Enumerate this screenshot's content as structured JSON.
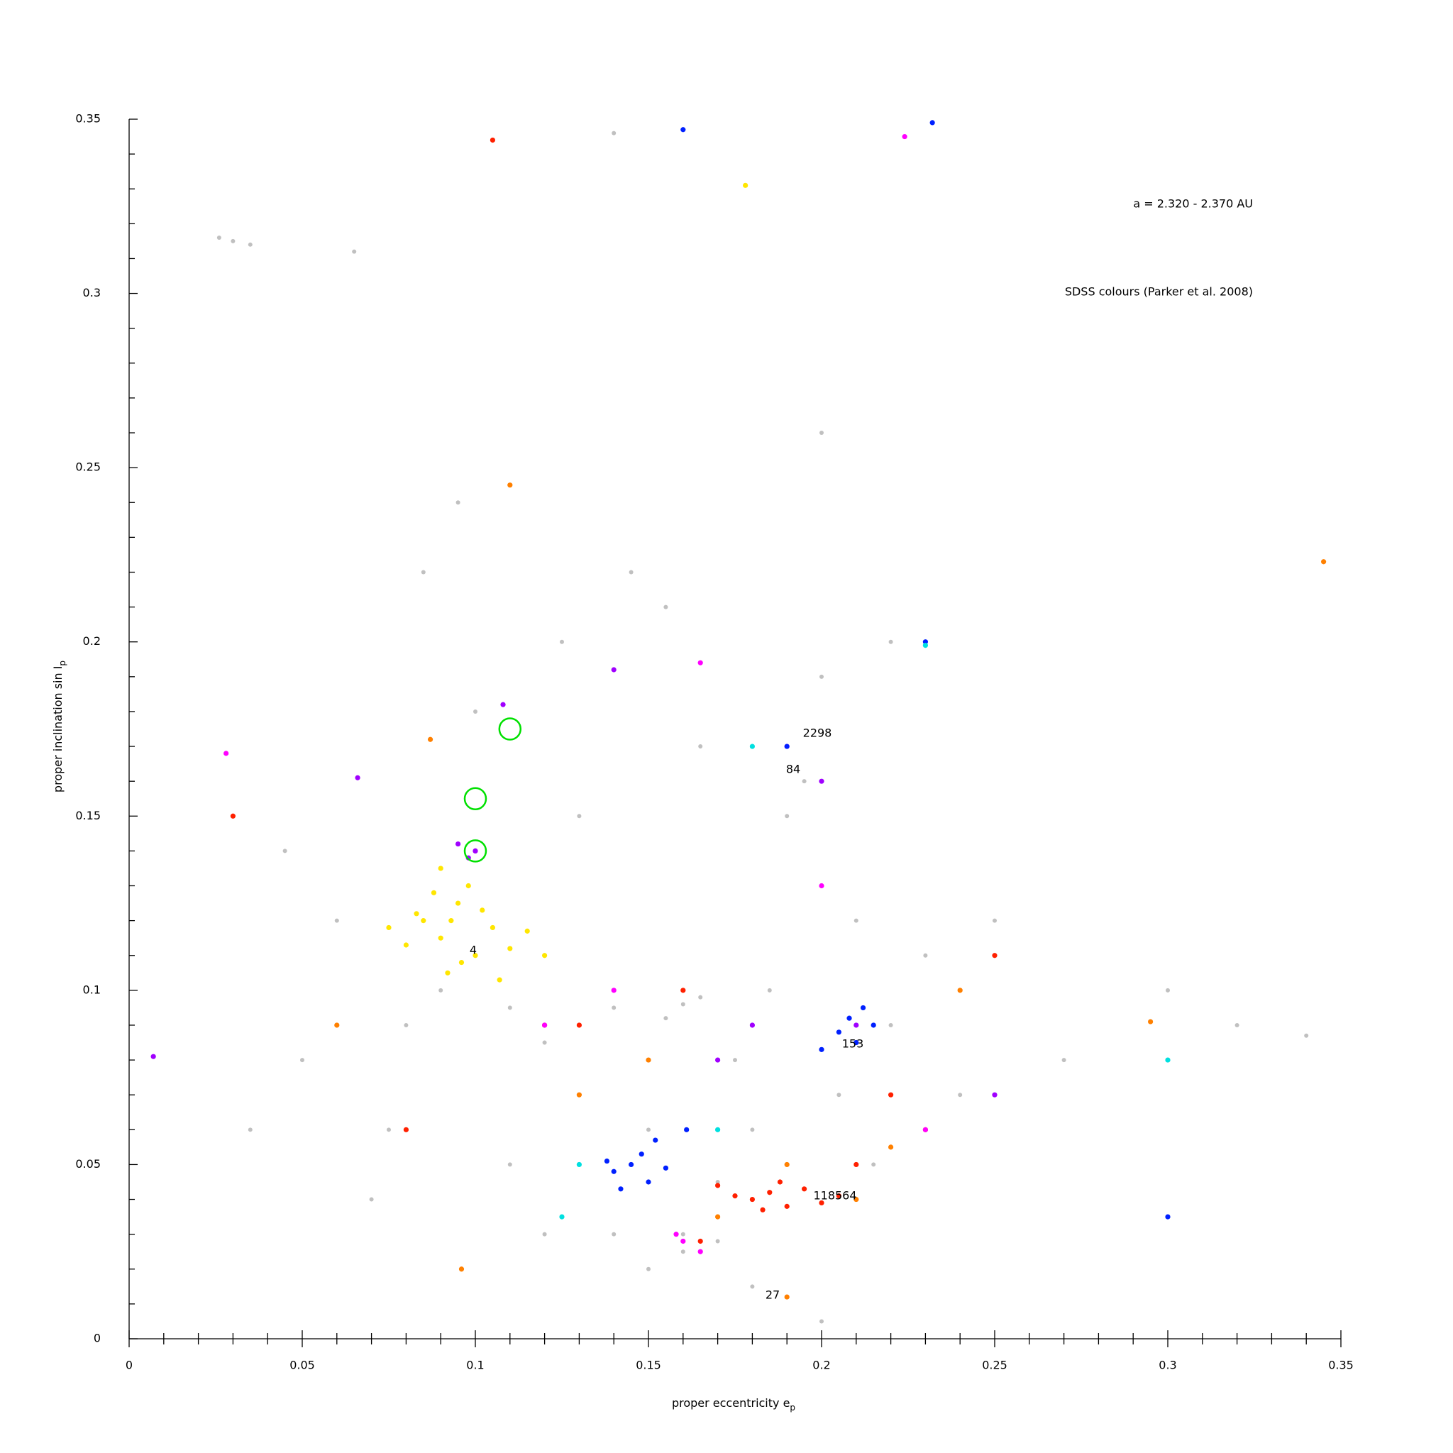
{
  "chart_data": {
    "type": "scatter",
    "xlabel": {
      "text": "proper eccentricity e",
      "sub": "p"
    },
    "ylabel": {
      "text": "proper inclination sin I",
      "sub": "p"
    },
    "annotations": [
      "a = 2.320 - 2.370 AU",
      "SDSS colours (Parker et al. 2008)"
    ],
    "family_labels": [
      "4",
      "2298",
      "84",
      "153",
      "118564",
      "27"
    ],
    "xlim": [
      0,
      0.35
    ],
    "ylim": [
      0,
      0.35
    ],
    "xticks": [
      0,
      0.05,
      0.1,
      0.15,
      0.2,
      0.25,
      0.3,
      0.35
    ],
    "yticks": [
      0,
      0.05,
      0.1,
      0.15,
      0.2,
      0.25,
      0.3,
      0.35
    ],
    "xminorticks": [
      0.01,
      0.02,
      0.03,
      0.04,
      0.06,
      0.07,
      0.08,
      0.09,
      0.11,
      0.12,
      0.13,
      0.14,
      0.16,
      0.17,
      0.18,
      0.19,
      0.21,
      0.22,
      0.23,
      0.24,
      0.26,
      0.27,
      0.28,
      0.29,
      0.31,
      0.32,
      0.33,
      0.34
    ],
    "yminorticks": [
      0.01,
      0.02,
      0.03,
      0.04,
      0.06,
      0.07,
      0.08,
      0.09,
      0.11,
      0.12,
      0.13,
      0.14,
      0.16,
      0.17,
      0.18,
      0.19,
      0.21,
      0.22,
      0.23,
      0.24,
      0.26,
      0.27,
      0.28,
      0.29,
      0.31,
      0.32,
      0.33,
      0.34
    ],
    "series": [
      {
        "color": "#c0c0c0",
        "x": [
          0.05,
          0.06,
          0.08,
          0.09,
          0.11,
          0.12,
          0.13,
          0.14,
          0.15,
          0.16,
          0.17,
          0.18,
          0.19,
          0.2,
          0.21,
          0.22,
          0.23,
          0.24,
          0.25,
          0.27,
          0.3,
          0.035,
          0.045,
          0.07,
          0.1,
          0.125,
          0.145,
          0.155,
          0.165,
          0.175,
          0.185,
          0.195,
          0.205,
          0.215,
          0.16,
          0.17,
          0.15,
          0.14,
          0.18,
          0.19,
          0.2,
          0.12,
          0.11,
          0.085,
          0.095,
          0.026,
          0.03,
          0.035,
          0.065,
          0.14,
          0.2,
          0.22,
          0.32,
          0.34,
          0.16,
          0.165,
          0.155,
          0.13,
          0.1,
          0.075
        ],
        "values": [
          0.08,
          0.12,
          0.09,
          0.1,
          0.095,
          0.085,
          0.07,
          0.095,
          0.06,
          0.03,
          0.045,
          0.06,
          0.15,
          0.19,
          0.12,
          0.09,
          0.11,
          0.07,
          0.12,
          0.08,
          0.1,
          0.06,
          0.14,
          0.04,
          0.18,
          0.2,
          0.22,
          0.21,
          0.17,
          0.08,
          0.1,
          0.16,
          0.07,
          0.05,
          0.025,
          0.028,
          0.02,
          0.03,
          0.015,
          0.012,
          0.005,
          0.03,
          0.05,
          0.22,
          0.24,
          0.316,
          0.315,
          0.314,
          0.312,
          0.346,
          0.26,
          0.2,
          0.09,
          0.087,
          0.096,
          0.098,
          0.092,
          0.15,
          0.11,
          0.06
        ]
      },
      {
        "color": "#ffe600",
        "x": [
          0.085,
          0.09,
          0.095,
          0.1,
          0.105,
          0.08,
          0.088,
          0.092,
          0.098,
          0.11,
          0.083,
          0.096,
          0.102,
          0.115,
          0.09,
          0.12,
          0.075,
          0.107,
          0.093,
          0.178
        ],
        "values": [
          0.12,
          0.115,
          0.125,
          0.11,
          0.118,
          0.113,
          0.128,
          0.105,
          0.13,
          0.112,
          0.122,
          0.108,
          0.123,
          0.117,
          0.135,
          0.11,
          0.118,
          0.103,
          0.12,
          0.331
        ]
      },
      {
        "color": "#ff8000",
        "x": [
          0.19,
          0.21,
          0.17,
          0.13,
          0.087,
          0.11,
          0.06,
          0.23,
          0.24,
          0.15,
          0.22,
          0.096,
          0.19,
          0.295,
          0.345
        ],
        "values": [
          0.05,
          0.04,
          0.035,
          0.07,
          0.172,
          0.245,
          0.09,
          0.06,
          0.1,
          0.08,
          0.055,
          0.02,
          0.012,
          0.091,
          0.223
        ]
      },
      {
        "color": "#ff2000",
        "x": [
          0.18,
          0.185,
          0.19,
          0.175,
          0.195,
          0.183,
          0.188,
          0.2,
          0.17,
          0.205,
          0.105,
          0.165,
          0.12,
          0.03,
          0.13,
          0.22,
          0.25,
          0.08,
          0.16,
          0.21
        ],
        "values": [
          0.04,
          0.042,
          0.038,
          0.041,
          0.043,
          0.037,
          0.045,
          0.039,
          0.044,
          0.041,
          0.344,
          0.028,
          0.09,
          0.15,
          0.09,
          0.07,
          0.11,
          0.06,
          0.1,
          0.05
        ]
      },
      {
        "color": "#ff00ff",
        "x": [
          0.16,
          0.165,
          0.158,
          0.028,
          0.1,
          0.19,
          0.12,
          0.165,
          0.224,
          0.2,
          0.23,
          0.14
        ],
        "values": [
          0.028,
          0.025,
          0.03,
          0.168,
          0.14,
          0.17,
          0.09,
          0.194,
          0.345,
          0.13,
          0.06,
          0.1
        ]
      },
      {
        "color": "#a000ff",
        "x": [
          0.1,
          0.098,
          0.095,
          0.21,
          0.2,
          0.066,
          0.108,
          0.14,
          0.17,
          0.25,
          0.007,
          0.18
        ],
        "values": [
          0.14,
          0.138,
          0.142,
          0.09,
          0.16,
          0.161,
          0.182,
          0.192,
          0.08,
          0.07,
          0.081,
          0.09
        ]
      },
      {
        "color": "#0020ff",
        "x": [
          0.14,
          0.145,
          0.15,
          0.148,
          0.142,
          0.155,
          0.138,
          0.152,
          0.205,
          0.21,
          0.208,
          0.215,
          0.2,
          0.212,
          0.19,
          0.23,
          0.16,
          0.232,
          0.161,
          0.3
        ],
        "values": [
          0.048,
          0.05,
          0.045,
          0.053,
          0.043,
          0.049,
          0.051,
          0.057,
          0.088,
          0.085,
          0.092,
          0.09,
          0.083,
          0.095,
          0.17,
          0.2,
          0.347,
          0.349,
          0.06,
          0.035
        ]
      },
      {
        "color": "#00e0e0",
        "x": [
          0.23,
          0.18,
          0.3,
          0.13,
          0.17,
          0.125
        ],
        "values": [
          0.199,
          0.17,
          0.08,
          0.05,
          0.06,
          0.035
        ]
      }
    ],
    "circles": {
      "color": "#00e000",
      "x": [
        0.11,
        0.1,
        0.1
      ],
      "values": [
        0.175,
        0.155,
        0.14
      ]
    }
  }
}
